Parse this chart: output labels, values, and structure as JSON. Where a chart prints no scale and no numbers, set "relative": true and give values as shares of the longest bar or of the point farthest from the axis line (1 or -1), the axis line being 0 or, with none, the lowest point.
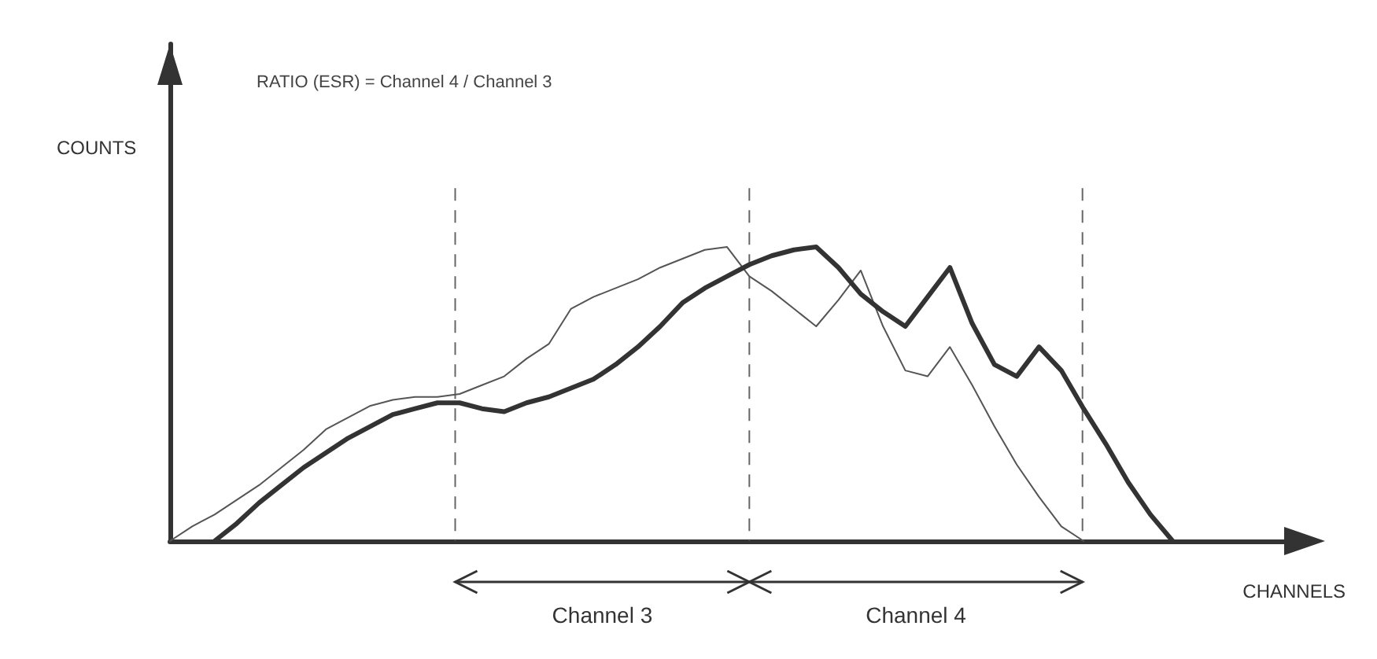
{
  "chart_data": {
    "type": "line",
    "title": "RATIO (ESR) = Channel 4 / Channel 3",
    "xlabel": "CHANNELS",
    "ylabel": "COUNTS",
    "relative": true,
    "marker": "none",
    "line_style": "solid",
    "grid": "x",
    "categories": [
      null,
      null,
      null,
      null,
      null,
      null,
      null,
      null,
      null,
      null,
      null,
      null,
      null,
      null,
      null,
      null,
      null,
      null,
      null,
      null,
      null,
      null,
      null,
      null,
      null,
      null,
      null,
      null,
      null,
      null,
      null,
      null,
      null,
      null,
      null,
      null,
      null,
      null,
      null,
      null,
      null,
      null,
      null,
      null,
      null,
      null,
      null,
      null,
      null,
      null,
      null
    ],
    "series": [
      {
        "color": "#555555",
        "values": [
          0,
          0.05,
          0.09,
          0.14,
          0.19,
          0.25,
          0.31,
          0.38,
          0.42,
          0.46,
          0.48,
          0.49,
          0.49,
          0.5,
          0.53,
          0.56,
          0.62,
          0.67,
          0.79,
          0.83,
          0.86,
          0.89,
          0.93,
          0.96,
          0.99,
          1.0,
          0.9,
          0.85,
          0.79,
          0.73,
          0.82,
          0.92,
          0.73,
          0.58,
          0.56,
          0.66,
          0.53,
          0.39,
          0.26,
          0.15,
          0.05,
          0,
          null,
          null,
          null,
          null,
          null,
          null,
          null,
          null,
          null
        ]
      },
      {
        "color": "#333333",
        "values": [
          null,
          null,
          0,
          0.06,
          0.13,
          0.19,
          0.25,
          0.3,
          0.35,
          0.39,
          0.43,
          0.45,
          0.47,
          0.47,
          0.45,
          0.44,
          0.47,
          0.49,
          0.52,
          0.55,
          0.6,
          0.66,
          0.73,
          0.81,
          0.86,
          0.9,
          0.94,
          0.97,
          0.99,
          1.0,
          0.93,
          0.84,
          0.78,
          0.73,
          0.83,
          0.93,
          0.74,
          0.6,
          0.56,
          0.66,
          0.58,
          0.45,
          0.33,
          0.2,
          0.09,
          0,
          null,
          null,
          null,
          null,
          null
        ]
      }
    ],
    "annotations": [
      "Channel 3",
      "Channel 4"
    ]
  }
}
